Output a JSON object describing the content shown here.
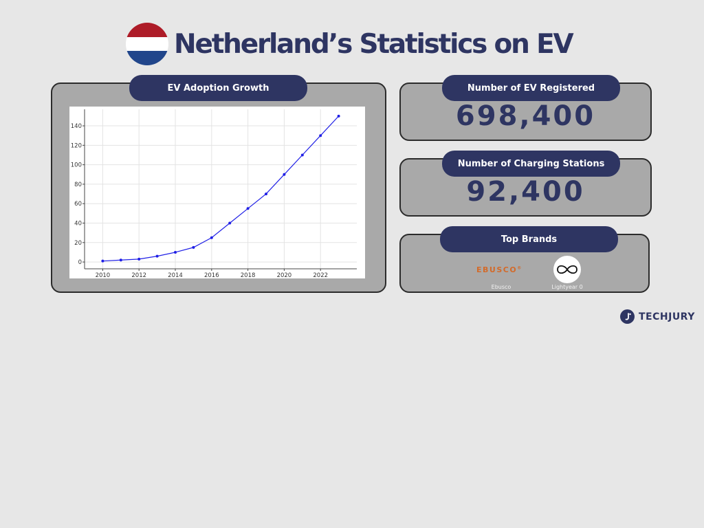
{
  "page": {
    "title": "Netherland’s Statistics on EV"
  },
  "flag": {
    "colors": [
      "#ae1c28",
      "#ffffff",
      "#21468b"
    ]
  },
  "adoption_card": {
    "label": "EV Adoption Growth"
  },
  "registered_card": {
    "label": "Number of EV Registered",
    "value": "698,400"
  },
  "charging_card": {
    "label": "Number of Charging Stations",
    "value": "92,400"
  },
  "brands_card": {
    "label": "Top Brands",
    "brands": [
      {
        "name": "Ebusco",
        "logo_text": "EBUSCO",
        "logo_mark": "®",
        "color": "#d36a2a"
      },
      {
        "name": "Lightyear 0",
        "logo_icon": "infinity-icon"
      }
    ]
  },
  "footer": {
    "brand": "TECHJURY"
  },
  "colors": {
    "accent": "#2e3562",
    "line": "#1f1fe6",
    "card_bg": "#a9a9a9",
    "page_bg": "#e7e7e7"
  },
  "chart_data": {
    "type": "line",
    "title": "",
    "xlabel": "",
    "ylabel": "",
    "x": [
      2010,
      2011,
      2012,
      2013,
      2014,
      2015,
      2016,
      2017,
      2018,
      2019,
      2020,
      2021,
      2022,
      2023
    ],
    "series": [
      {
        "values": [
          1,
          2,
          3,
          6,
          10,
          15,
          25,
          40,
          55,
          70,
          90,
          110,
          130,
          150
        ]
      }
    ],
    "xlim": [
      2009,
      2024
    ],
    "ylim": [
      -7,
      157
    ],
    "xticks": [
      2010,
      2012,
      2014,
      2016,
      2018,
      2020,
      2022
    ],
    "yticks": [
      0,
      20,
      40,
      60,
      80,
      100,
      120,
      140
    ],
    "grid": true,
    "legend": "none"
  }
}
